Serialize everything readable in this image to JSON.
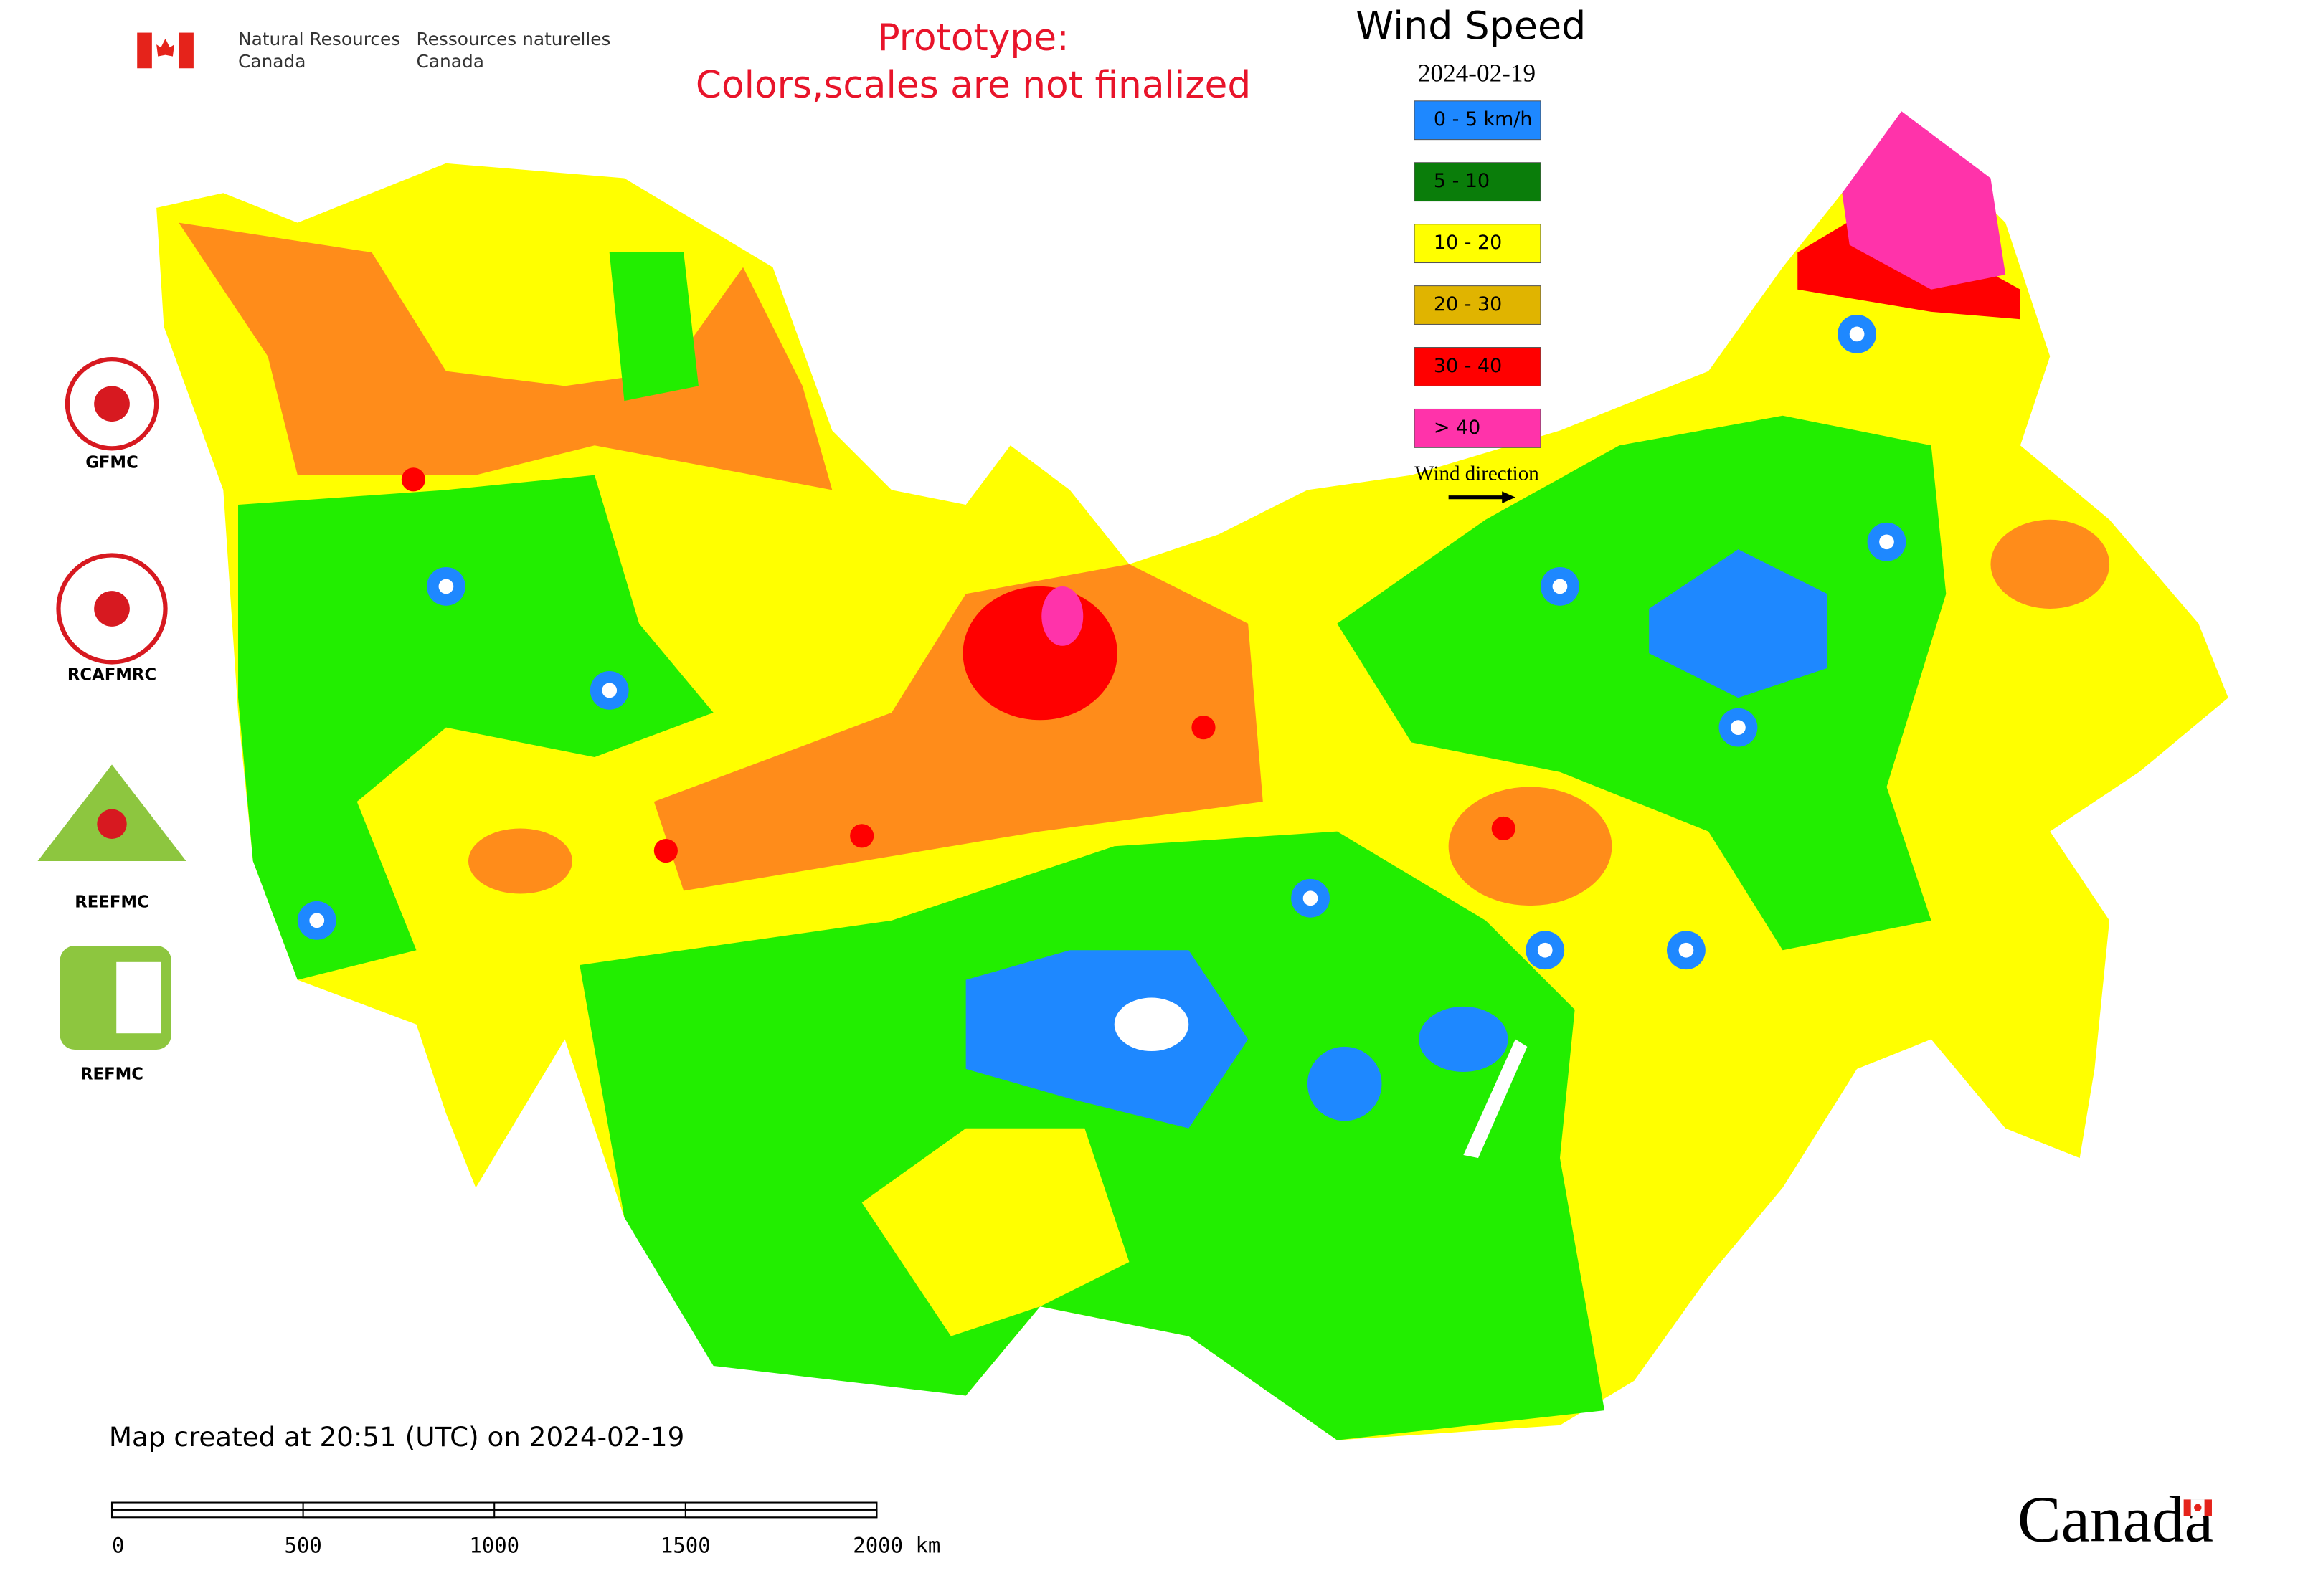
{
  "header": {
    "org_en": [
      "Natural Resources",
      "Canada"
    ],
    "org_fr": [
      "Ressources naturelles",
      "Canada"
    ]
  },
  "notice": [
    "Prototype:",
    "Colors,scales are not finalized"
  ],
  "legend": {
    "title": "Wind Speed",
    "date": "2024-02-19",
    "items": [
      {
        "label": "0 - 5 km/h",
        "color": "#1e88ff"
      },
      {
        "label": "5 - 10",
        "color": "#0a7d0a"
      },
      {
        "label": "10 - 20",
        "color": "#ffff00"
      },
      {
        "label": "20 - 30",
        "color": "#e0b400"
      },
      {
        "label": "30 - 40",
        "color": "#ff0000"
      },
      {
        "label": "> 40",
        "color": "#ff33aa"
      }
    ],
    "direction": "Wind direction"
  },
  "logos": [
    "GFMC",
    "RCAFMRC",
    "REEFMC",
    "REFMC"
  ],
  "footer": "Map created at 20:51 (UTC) on 2024-02-19",
  "scale_bar": [
    "0",
    "500",
    "1000",
    "1500",
    "2000 km"
  ],
  "wordmark": "Canada"
}
